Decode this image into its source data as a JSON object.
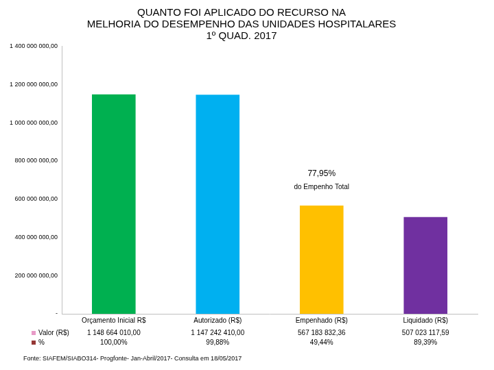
{
  "chart_data": {
    "type": "bar",
    "title": [
      "QUANTO FOI APLICADO DO RECURSO NA",
      "MELHORIA DO DESEMPENHO DAS UNIDADES HOSPITALARES",
      "1º QUAD. 2017"
    ],
    "categories": [
      "Orçamento Inicial R$",
      "Autorizado (R$)",
      "Empenhado (R$)",
      "Liquidado (R$)"
    ],
    "values": [
      1148664010.0,
      1147242410.0,
      567183832.36,
      507023117.59
    ],
    "colors": [
      "#00b050",
      "#00b0f0",
      "#ffc000",
      "#7030a0"
    ],
    "ylim": [
      0,
      1400000000
    ],
    "yticks": [
      {
        "value": 0,
        "label": "-"
      },
      {
        "value": 200000000,
        "label": "200 000 000,00"
      },
      {
        "value": 400000000,
        "label": "400 000 000,00"
      },
      {
        "value": 600000000,
        "label": "600 000 000,00"
      },
      {
        "value": 800000000,
        "label": "800 000 000,00"
      },
      {
        "value": 1000000000,
        "label": "1 000 000 000,00"
      },
      {
        "value": 1200000000,
        "label": "1 200 000 000,00"
      },
      {
        "value": 1400000000,
        "label": "1 400 000 000,00"
      }
    ],
    "grid": false,
    "annotation": {
      "category": "Empenhado (R$)",
      "lines": [
        "77,95%",
        "do Empenho Total"
      ]
    },
    "data_table": {
      "rows": [
        {
          "name": "Valor (R$)",
          "color": "#e89ac7",
          "values": [
            1148664010.0,
            1147242410.0,
            567183832.36,
            507023117.59
          ],
          "value_labels": [
            "1 148 664 010,00",
            "1 147 242 410,00",
            "567 183 832,36",
            "507 023 117,59"
          ]
        },
        {
          "name": "%",
          "color": "#953735",
          "values": [
            100.0,
            99.88,
            49.44,
            89.39
          ],
          "value_labels": [
            "100,00%",
            "99,88%",
            "49,44%",
            "89,39%"
          ]
        }
      ]
    },
    "source": "Fonte: SIAFEM/SIABO314- Progfonte- Jan-Abril/2017- Consulta em 18/05/2017"
  }
}
